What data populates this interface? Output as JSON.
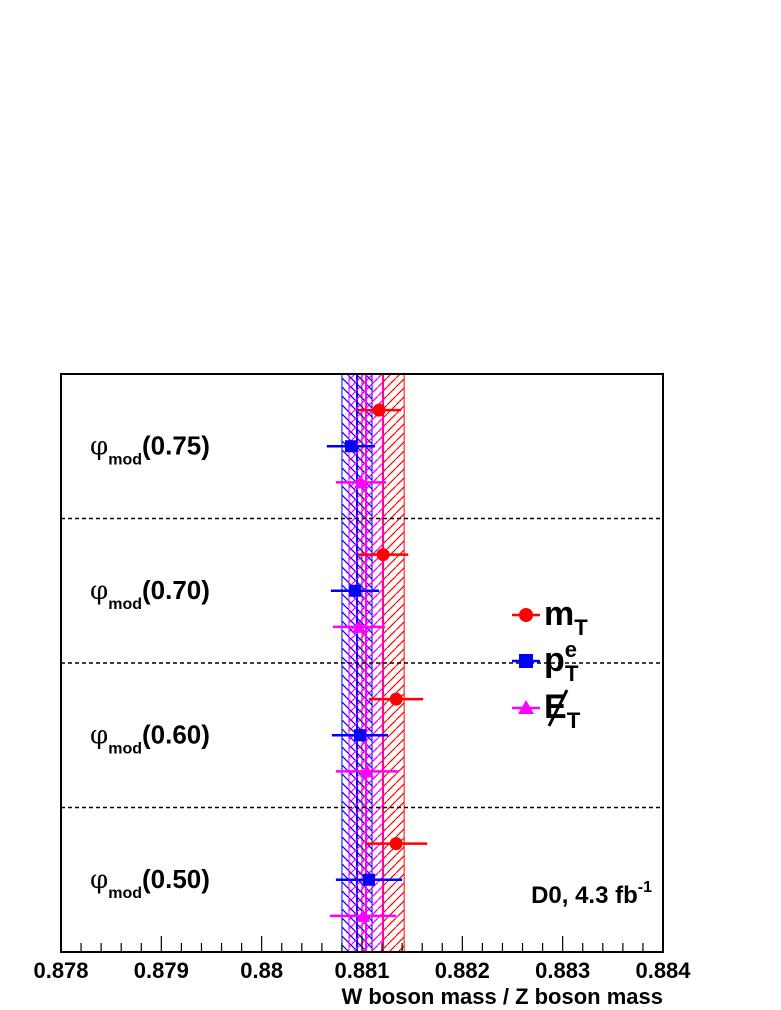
{
  "chart_data": {
    "type": "scatter",
    "xlabel": "W boson mass / Z boson mass",
    "ylabel": "",
    "xlim": [
      0.878,
      0.884
    ],
    "x_ticks": [
      "0.878",
      "0.879",
      "0.88",
      "0.881",
      "0.882",
      "0.883",
      "0.884"
    ],
    "x_tick_values": [
      0.878,
      0.879,
      0.88,
      0.881,
      0.882,
      0.883,
      0.884
    ],
    "annotation": "D0, 4.3 fb",
    "annotation_sup": "-1",
    "legend_position": "right",
    "colors": {
      "mT": "#ff0000",
      "peT": "#0000ff",
      "met": "#ff00ff"
    },
    "categories": [
      {
        "name": "φ",
        "sub": "mod",
        "param": "(0.75)"
      },
      {
        "name": "φ",
        "sub": "mod",
        "param": "(0.70)"
      },
      {
        "name": "φ",
        "sub": "mod",
        "param": "(0.60)"
      },
      {
        "name": "φ",
        "sub": "mod",
        "param": "(0.50)"
      }
    ],
    "bands": [
      {
        "series": "mT",
        "center": 0.88121,
        "halfwidth": 0.00021
      },
      {
        "series": "peT",
        "center": 0.88095,
        "halfwidth": 0.00015
      },
      {
        "series": "met",
        "center": 0.88104,
        "halfwidth": 0.00017
      }
    ],
    "series": [
      {
        "key": "mT",
        "legend_main": "m",
        "legend_sub": "T",
        "legend_sup": "",
        "marker": "circle",
        "values": [
          0.88117,
          0.88121,
          0.88134,
          0.88134
        ],
        "errors": [
          0.00022,
          0.00025,
          0.00027,
          0.00031
        ]
      },
      {
        "key": "peT",
        "legend_main": "p",
        "legend_sub": "T",
        "legend_sup": "e",
        "marker": "square",
        "values": [
          0.88089,
          0.88093,
          0.88098,
          0.88107
        ],
        "errors": [
          0.00024,
          0.00024,
          0.00028,
          0.00033
        ]
      },
      {
        "key": "met",
        "legend_main": "E",
        "legend_sub": "T",
        "legend_sup": "",
        "marker": "triangle",
        "values": [
          0.88099,
          0.88097,
          0.88105,
          0.88101
        ],
        "errors": [
          0.00025,
          0.00026,
          0.00031,
          0.00033
        ]
      }
    ]
  }
}
